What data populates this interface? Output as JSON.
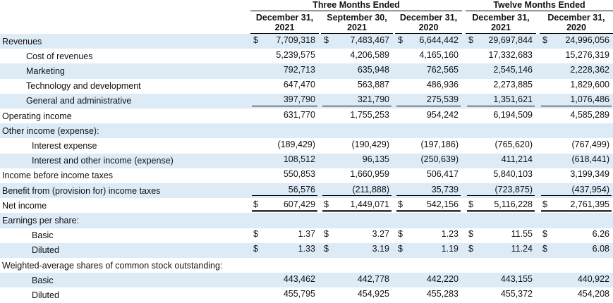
{
  "table": {
    "groups": [
      "Three Months Ended",
      "Twelve Months Ended"
    ],
    "columns": [
      [
        "December 31,",
        "2021"
      ],
      [
        "September 30,",
        "2021"
      ],
      [
        "December 31,",
        "2020"
      ],
      [
        "December 31,",
        "2021"
      ],
      [
        "December 31,",
        "2020"
      ]
    ],
    "currency": "$",
    "rows": [
      {
        "label": "Revenues",
        "values": [
          "7,709,318",
          "7,483,467",
          "6,644,442",
          "29,697,844",
          "24,996,056"
        ]
      },
      {
        "label": "Cost of revenues",
        "values": [
          "5,239,575",
          "4,206,589",
          "4,165,160",
          "17,332,683",
          "15,276,319"
        ]
      },
      {
        "label": "Marketing",
        "values": [
          "792,713",
          "635,948",
          "762,565",
          "2,545,146",
          "2,228,362"
        ]
      },
      {
        "label": "Technology and development",
        "values": [
          "647,470",
          "563,887",
          "486,936",
          "2,273,885",
          "1,829,600"
        ]
      },
      {
        "label": "General and administrative",
        "values": [
          "397,790",
          "321,790",
          "275,539",
          "1,351,621",
          "1,076,486"
        ]
      },
      {
        "label": "Operating income",
        "values": [
          "631,770",
          "1,755,253",
          "954,242",
          "6,194,509",
          "4,585,289"
        ]
      },
      {
        "label": "Other income (expense):"
      },
      {
        "label": "Interest expense",
        "values": [
          "(189,429)",
          "(190,429)",
          "(197,186)",
          "(765,620)",
          "(767,499)"
        ]
      },
      {
        "label": "Interest and other income (expense)",
        "values": [
          "108,512",
          "96,135",
          "(250,639)",
          "411,214",
          "(618,441)"
        ]
      },
      {
        "label": "Income before income taxes",
        "values": [
          "550,853",
          "1,660,959",
          "506,417",
          "5,840,103",
          "3,199,349"
        ]
      },
      {
        "label": "Benefit from (provision for) income taxes",
        "values": [
          "56,576",
          "(211,888)",
          "35,739",
          "(723,875)",
          "(437,954)"
        ]
      },
      {
        "label": "Net income",
        "values": [
          "607,429",
          "1,449,071",
          "542,156",
          "5,116,228",
          "2,761,395"
        ]
      },
      {
        "label": "Earnings per share:"
      },
      {
        "label": "Basic",
        "values": [
          "1.37",
          "3.27",
          "1.23",
          "11.55",
          "6.26"
        ]
      },
      {
        "label": "Diluted",
        "values": [
          "1.33",
          "3.19",
          "1.19",
          "11.24",
          "6.08"
        ]
      },
      {
        "label": "Weighted-average shares of common stock outstanding:"
      },
      {
        "label": "Basic",
        "values": [
          "443,462",
          "442,778",
          "442,220",
          "443,155",
          "440,922"
        ]
      },
      {
        "label": "Diluted",
        "values": [
          "455,795",
          "454,925",
          "455,283",
          "455,372",
          "454,208"
        ]
      }
    ]
  }
}
